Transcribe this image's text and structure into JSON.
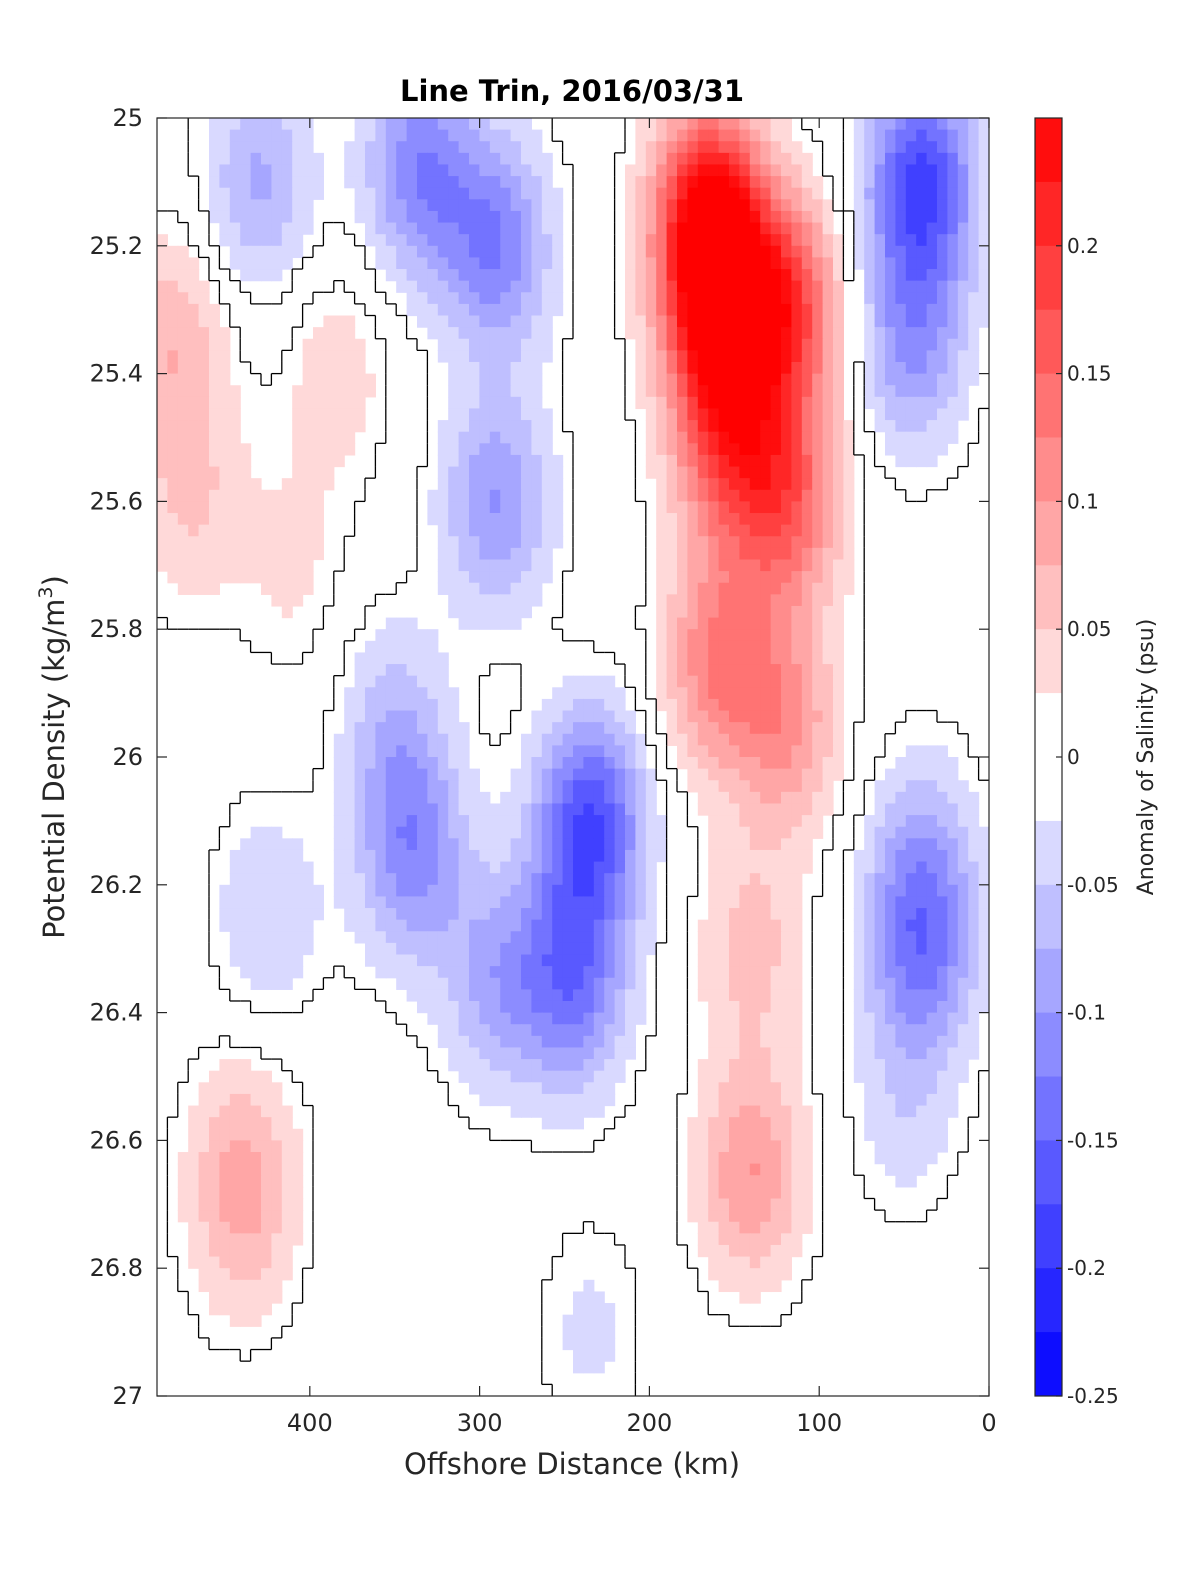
{
  "chart_data": {
    "type": "contour",
    "title": "Line Trin, 2016/03/31",
    "xlabel": "Offshore Distance (km)",
    "ylabel_main": "Potential Density (kg/m",
    "ylabel_sup": "3",
    "ylabel_close": ")",
    "colorbar_label": "Anomaly of Salinity (psu)",
    "x_reversed": true,
    "xlim": [
      0,
      490
    ],
    "ylim": [
      25,
      27
    ],
    "y_reversed": true,
    "x_ticks": [
      400,
      300,
      200,
      100,
      0
    ],
    "x_tick_labels": [
      "400",
      "300",
      "200",
      "100",
      "0"
    ],
    "y_ticks": [
      25,
      25.2,
      25.4,
      25.6,
      25.8,
      26,
      26.2,
      26.4,
      26.6,
      26.8,
      27
    ],
    "y_tick_labels": [
      "25",
      "25.2",
      "25.4",
      "25.6",
      "25.8",
      "26",
      "26.2",
      "26.4",
      "26.6",
      "26.8",
      "27"
    ],
    "colorbar_ticks": [
      0.2,
      0.15,
      0.1,
      0.05,
      0,
      -0.05,
      -0.1,
      -0.15,
      -0.2,
      -0.25
    ],
    "colorbar_tick_labels": [
      "0.2",
      "0.15",
      "0.1",
      "0.05",
      "0",
      "-0.05",
      "-0.1",
      "-0.15",
      "-0.2",
      "-0.25"
    ],
    "colorbar_range": [
      -0.25,
      0.25
    ],
    "level_step": 0.025,
    "colors": {
      "positive": "#ff0000",
      "negative": "#0000ff",
      "zero": "#ffffff",
      "contour_line": "#000000"
    },
    "features": [
      {
        "x": 165,
        "y": 25.15,
        "value": 0.23
      },
      {
        "x": 160,
        "y": 25.3,
        "value": 0.2
      },
      {
        "x": 155,
        "y": 25.5,
        "value": 0.15
      },
      {
        "x": 120,
        "y": 25.3,
        "value": 0.18
      },
      {
        "x": 120,
        "y": 25.6,
        "value": 0.15
      },
      {
        "x": 120,
        "y": 25.95,
        "value": 0.1
      },
      {
        "x": 160,
        "y": 25.85,
        "value": 0.12
      },
      {
        "x": 140,
        "y": 26.3,
        "value": 0.06
      },
      {
        "x": 140,
        "y": 26.65,
        "value": 0.1
      },
      {
        "x": 40,
        "y": 25.1,
        "value": -0.18
      },
      {
        "x": 45,
        "y": 25.35,
        "value": -0.1
      },
      {
        "x": 335,
        "y": 25.08,
        "value": -0.12
      },
      {
        "x": 290,
        "y": 25.2,
        "value": -0.12
      },
      {
        "x": 290,
        "y": 25.6,
        "value": -0.1
      },
      {
        "x": 235,
        "y": 26.1,
        "value": -0.17
      },
      {
        "x": 245,
        "y": 26.35,
        "value": -0.13
      },
      {
        "x": 290,
        "y": 26.35,
        "value": -0.08
      },
      {
        "x": 340,
        "y": 26.15,
        "value": -0.11
      },
      {
        "x": 350,
        "y": 25.95,
        "value": -0.06
      },
      {
        "x": 40,
        "y": 26.3,
        "value": -0.12
      },
      {
        "x": 40,
        "y": 26.15,
        "value": -0.06
      },
      {
        "x": 50,
        "y": 26.55,
        "value": -0.04
      },
      {
        "x": 430,
        "y": 25.1,
        "value": -0.08
      },
      {
        "x": 425,
        "y": 26.25,
        "value": -0.05
      },
      {
        "x": 480,
        "y": 25.35,
        "value": 0.07
      },
      {
        "x": 470,
        "y": 25.6,
        "value": 0.05
      },
      {
        "x": 385,
        "y": 25.4,
        "value": 0.04
      },
      {
        "x": 410,
        "y": 25.7,
        "value": 0.03
      },
      {
        "x": 440,
        "y": 26.72,
        "value": 0.06
      },
      {
        "x": 440,
        "y": 26.6,
        "value": 0.04
      },
      {
        "x": 235,
        "y": 26.9,
        "value": -0.03
      }
    ]
  }
}
